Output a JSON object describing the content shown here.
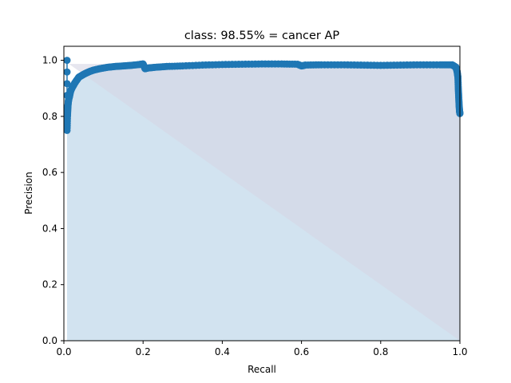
{
  "chart_data": {
    "type": "area",
    "title": "class: 98.55% = cancer AP",
    "xlabel": "Recall",
    "ylabel": "Precision",
    "xlim": [
      0.0,
      1.0
    ],
    "ylim": [
      0.0,
      1.05
    ],
    "xticks": [
      "0.0",
      "0.2",
      "0.4",
      "0.6",
      "0.8",
      "1.0"
    ],
    "yticks": [
      "0.0",
      "0.2",
      "0.4",
      "0.6",
      "0.8",
      "1.0"
    ],
    "grid": false,
    "colors": {
      "line": "#1f77b4",
      "fill": "#d2e3f0",
      "interp_area": "#d5d5e4"
    },
    "series": [
      {
        "x": [
          0.008,
          0.008,
          0.009,
          0.01,
          0.011,
          0.012,
          0.014,
          0.017,
          0.02,
          0.024,
          0.028,
          0.033,
          0.038,
          0.044,
          0.05,
          0.057,
          0.065,
          0.075,
          0.09,
          0.11,
          0.13,
          0.15,
          0.17,
          0.19,
          0.2,
          0.205,
          0.21,
          0.23,
          0.26,
          0.3,
          0.35,
          0.4,
          0.45,
          0.5,
          0.55,
          0.59,
          0.6,
          0.61,
          0.65,
          0.7,
          0.75,
          0.8,
          0.85,
          0.9,
          0.95,
          0.98,
          0.985,
          0.99,
          0.993,
          0.995,
          0.996,
          0.997,
          0.998,
          0.999,
          1.0
        ],
        "y": [
          1.0,
          0.75,
          0.8,
          0.83,
          0.85,
          0.86,
          0.87,
          0.89,
          0.9,
          0.91,
          0.92,
          0.93,
          0.94,
          0.945,
          0.95,
          0.955,
          0.96,
          0.965,
          0.97,
          0.975,
          0.978,
          0.98,
          0.982,
          0.985,
          0.987,
          0.97,
          0.972,
          0.975,
          0.978,
          0.98,
          0.983,
          0.985,
          0.986,
          0.987,
          0.987,
          0.986,
          0.98,
          0.983,
          0.984,
          0.984,
          0.983,
          0.982,
          0.983,
          0.984,
          0.984,
          0.984,
          0.98,
          0.975,
          0.96,
          0.94,
          0.9,
          0.87,
          0.84,
          0.82,
          0.81
        ]
      }
    ],
    "interpolated": {
      "x": [
        0.0,
        0.008,
        0.008,
        1.0,
        1.0
      ],
      "y": [
        1.0,
        1.0,
        0.987,
        0.987,
        0.0
      ]
    }
  }
}
